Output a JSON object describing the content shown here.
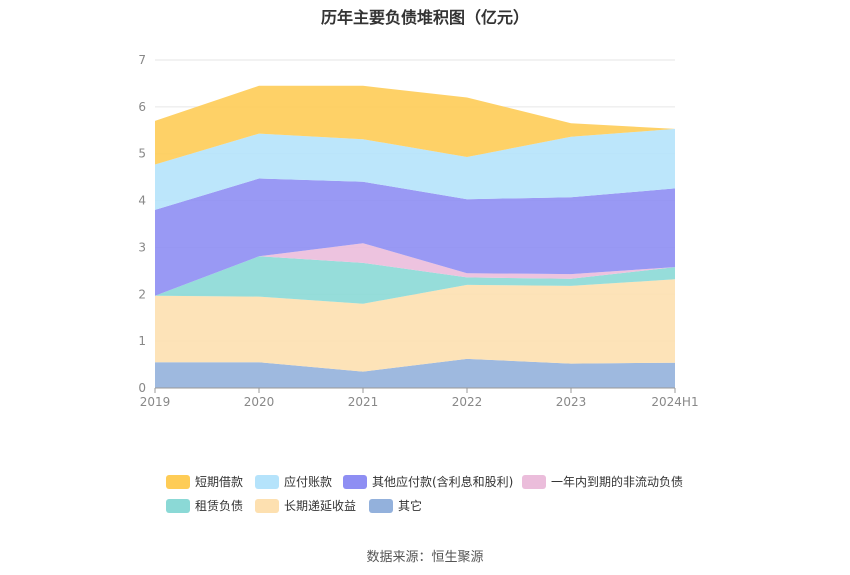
{
  "chart_data": {
    "type": "area",
    "stacked": true,
    "title": "历年主要负债堆积图（亿元）",
    "categories": [
      "2019",
      "2020",
      "2021",
      "2022",
      "2023",
      "2024H1"
    ],
    "ylim": [
      0,
      7
    ],
    "yticks": [
      "0",
      "1",
      "2",
      "3",
      "4",
      "5",
      "6",
      "7"
    ],
    "grid": true,
    "legend_position": "bottom",
    "series": [
      {
        "name": "其它",
        "color": "#93b1dc",
        "values": [
          0.55,
          0.55,
          0.35,
          0.62,
          0.52,
          0.54
        ]
      },
      {
        "name": "长期递延收益",
        "color": "#fde0b0",
        "values": [
          1.42,
          1.4,
          1.45,
          1.58,
          1.66,
          1.78
        ]
      },
      {
        "name": "租赁负债",
        "color": "#8bd9d6",
        "values": [
          0.0,
          0.86,
          0.87,
          0.16,
          0.15,
          0.26
        ]
      },
      {
        "name": "一年内到期的非流动负债",
        "color": "#ebbddb",
        "values": [
          0.0,
          0.0,
          0.42,
          0.09,
          0.1,
          0.0
        ]
      },
      {
        "name": "其他应付款(含利息和股利)",
        "color": "#8e8ef3",
        "values": [
          1.83,
          1.66,
          1.31,
          1.58,
          1.64,
          1.68
        ]
      },
      {
        "name": "应付账款",
        "color": "#b5e3fb",
        "values": [
          0.97,
          0.96,
          0.91,
          0.9,
          1.29,
          1.27
        ]
      },
      {
        "name": "短期借款",
        "color": "#fecc56",
        "values": [
          0.93,
          1.02,
          1.14,
          1.27,
          0.29,
          0.0
        ]
      }
    ],
    "legend_order": [
      "短期借款",
      "应付账款",
      "其他应付款(含利息和股利)",
      "一年内到期的非流动负债",
      "租赁负债",
      "长期递延收益",
      "其它"
    ]
  },
  "source_note": "数据来源：恒生聚源"
}
